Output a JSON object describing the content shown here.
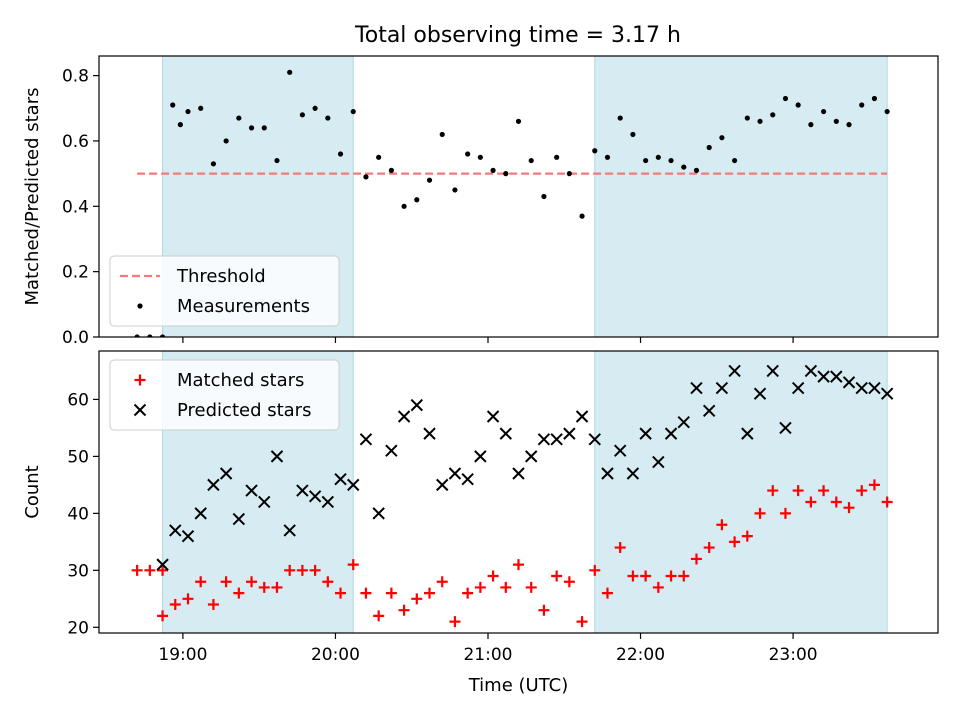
{
  "figure": {
    "title": "Total observing time = 3.17 h"
  },
  "chart_data": [
    {
      "type": "scatter",
      "ylabel": "Matched/Predicted stars",
      "xlim": [
        "18:27",
        "23:57"
      ],
      "ylim": [
        0,
        0.86
      ],
      "yticks": [
        "0.0",
        "0.2",
        "0.4",
        "0.6",
        "0.8"
      ],
      "ytick_values": [
        0,
        0.2,
        0.4,
        0.6,
        0.8
      ],
      "xticks_values": [
        "19:00",
        "20:00",
        "21:00",
        "22:00",
        "23:00"
      ],
      "show_xticklabels": false,
      "legend_position": "lower-left",
      "shaded_intervals": [
        [
          "18:52",
          "20:07"
        ],
        [
          "21:42",
          "23:37"
        ]
      ],
      "threshold": {
        "name": "Threshold",
        "value": 0.5,
        "x_range": [
          "18:42",
          "23:37"
        ],
        "color": "#f47a7a"
      },
      "series": [
        {
          "name": "Measurements",
          "marker": "dot",
          "color": "#000000",
          "x": [
            "18:42",
            "18:47",
            "18:52",
            "18:56",
            "18:59",
            "19:02",
            "19:07",
            "19:12",
            "19:17",
            "19:22",
            "19:27",
            "19:32",
            "19:37",
            "19:42",
            "19:47",
            "19:52",
            "19:57",
            "20:02",
            "20:07",
            "20:12",
            "20:17",
            "20:22",
            "20:27",
            "20:32",
            "20:37",
            "20:42",
            "20:47",
            "20:52",
            "20:57",
            "21:02",
            "21:07",
            "21:12",
            "21:17",
            "21:22",
            "21:27",
            "21:32",
            "21:37",
            "21:42",
            "21:47",
            "21:52",
            "21:57",
            "22:02",
            "22:07",
            "22:12",
            "22:17",
            "22:22",
            "22:27",
            "22:32",
            "22:37",
            "22:42",
            "22:47",
            "22:52",
            "22:57",
            "23:02",
            "23:07",
            "23:12",
            "23:17",
            "23:22",
            "23:27",
            "23:32",
            "23:37"
          ],
          "y": [
            0,
            0,
            0,
            0.71,
            0.65,
            0.69,
            0.7,
            0.53,
            0.6,
            0.67,
            0.64,
            0.64,
            0.54,
            0.81,
            0.68,
            0.7,
            0.67,
            0.56,
            0.69,
            0.49,
            0.55,
            0.51,
            0.4,
            0.42,
            0.48,
            0.62,
            0.45,
            0.56,
            0.55,
            0.51,
            0.5,
            0.66,
            0.54,
            0.43,
            0.55,
            0.5,
            0.37,
            0.57,
            0.55,
            0.67,
            0.62,
            0.54,
            0.55,
            0.54,
            0.52,
            0.51,
            0.58,
            0.61,
            0.54,
            0.67,
            0.66,
            0.68,
            0.73,
            0.71,
            0.65,
            0.69,
            0.66,
            0.65,
            0.71,
            0.73,
            0.69
          ]
        }
      ]
    },
    {
      "type": "scatter",
      "ylabel": "Count",
      "xlabel": "Time (UTC)",
      "xlim": [
        "18:27",
        "23:57"
      ],
      "ylim": [
        19,
        68.5
      ],
      "yticks": [
        "20",
        "30",
        "40",
        "50",
        "60"
      ],
      "ytick_values": [
        20,
        30,
        40,
        50,
        60
      ],
      "xticks": [
        "19:00",
        "20:00",
        "21:00",
        "22:00",
        "23:00"
      ],
      "legend_position": "top-left",
      "shaded_intervals": [
        [
          "18:52",
          "20:07"
        ],
        [
          "21:42",
          "23:37"
        ]
      ],
      "series": [
        {
          "name": "Matched stars",
          "marker": "plus",
          "color": "#ff0000",
          "x": [
            "18:42",
            "18:47",
            "18:52",
            "18:52",
            "18:57",
            "19:02",
            "19:07",
            "19:12",
            "19:17",
            "19:22",
            "19:27",
            "19:32",
            "19:37",
            "19:42",
            "19:47",
            "19:52",
            "19:57",
            "20:02",
            "20:07",
            "20:12",
            "20:17",
            "20:22",
            "20:27",
            "20:32",
            "20:37",
            "20:42",
            "20:47",
            "20:52",
            "20:57",
            "21:02",
            "21:07",
            "21:12",
            "21:17",
            "21:22",
            "21:27",
            "21:32",
            "21:37",
            "21:42",
            "21:47",
            "21:52",
            "21:57",
            "22:02",
            "22:07",
            "22:12",
            "22:17",
            "22:22",
            "22:27",
            "22:32",
            "22:37",
            "22:42",
            "22:47",
            "22:52",
            "22:57",
            "23:02",
            "23:07",
            "23:12",
            "23:17",
            "23:22",
            "23:27",
            "23:32",
            "23:37"
          ],
          "y": [
            30,
            30,
            30,
            22,
            24,
            25,
            28,
            24,
            28,
            26,
            28,
            27,
            27,
            30,
            30,
            30,
            28,
            26,
            31,
            26,
            22,
            26,
            23,
            25,
            26,
            28,
            21,
            26,
            27,
            29,
            27,
            31,
            27,
            23,
            29,
            28,
            21,
            30,
            26,
            34,
            29,
            29,
            27,
            29,
            29,
            32,
            34,
            38,
            35,
            36,
            40,
            44,
            40,
            44,
            42,
            44,
            42,
            41,
            44,
            45,
            42
          ]
        },
        {
          "name": "Predicted stars",
          "marker": "x",
          "color": "#000000",
          "x": [
            "18:52",
            "18:57",
            "19:02",
            "19:07",
            "19:12",
            "19:17",
            "19:22",
            "19:27",
            "19:32",
            "19:37",
            "19:42",
            "19:47",
            "19:52",
            "19:57",
            "20:02",
            "20:07",
            "20:12",
            "20:17",
            "20:22",
            "20:27",
            "20:32",
            "20:37",
            "20:42",
            "20:47",
            "20:52",
            "20:57",
            "21:02",
            "21:07",
            "21:12",
            "21:17",
            "21:22",
            "21:27",
            "21:32",
            "21:37",
            "21:42",
            "21:47",
            "21:52",
            "21:57",
            "22:02",
            "22:07",
            "22:12",
            "22:17",
            "22:22",
            "22:27",
            "22:32",
            "22:37",
            "22:42",
            "22:47",
            "22:52",
            "22:57",
            "23:02",
            "23:07",
            "23:12",
            "23:17",
            "23:22",
            "23:27",
            "23:32",
            "23:37"
          ],
          "y": [
            31,
            37,
            36,
            40,
            45,
            47,
            39,
            44,
            42,
            50,
            37,
            44,
            43,
            42,
            46,
            45,
            53,
            40,
            51,
            57,
            59,
            54,
            45,
            47,
            46,
            50,
            57,
            54,
            47,
            50,
            53,
            53,
            54,
            57,
            53,
            47,
            51,
            47,
            54,
            49,
            54,
            56,
            62,
            58,
            62,
            65,
            54,
            61,
            65,
            55,
            62,
            65,
            64,
            64,
            63,
            62,
            62,
            61
          ]
        }
      ]
    }
  ]
}
